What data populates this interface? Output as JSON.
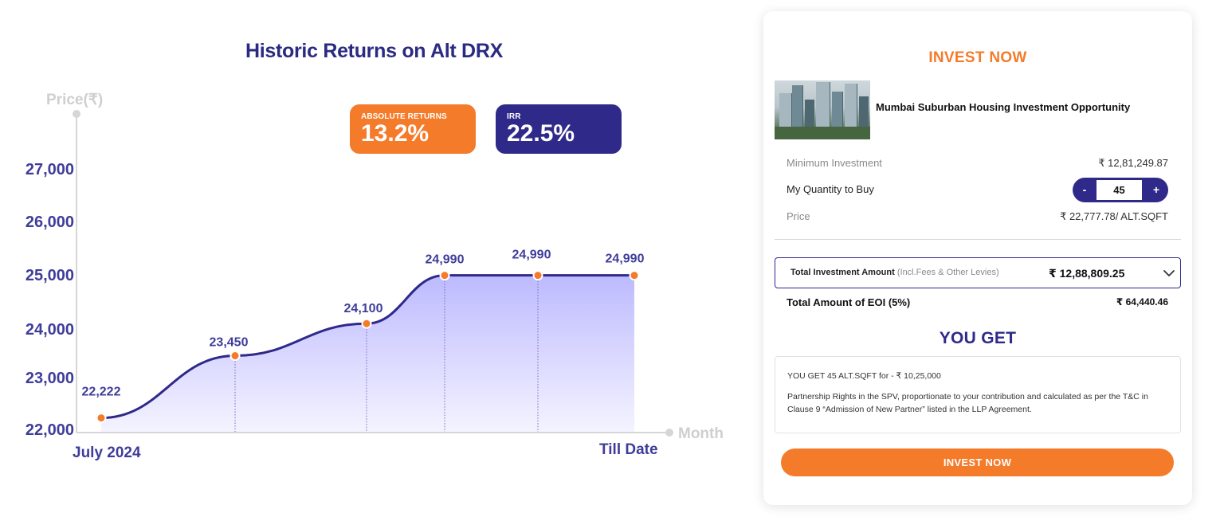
{
  "colors": {
    "brand_orange": "#f47b2a",
    "brand_indigo": "#2f2a8a",
    "axis_text": "#3f3d9a",
    "area_fill_top": "#b9b6ff",
    "area_fill_bottom": "#f1f0ff"
  },
  "chart_title": "Historic Returns on Alt DRX",
  "badges": {
    "absolute": {
      "label": "ABSOLUTE RETURNS",
      "value": "13.2%"
    },
    "irr": {
      "label": "IRR",
      "value": "22.5%"
    }
  },
  "chart_data": {
    "type": "area",
    "title": "Historic Returns on Alt DRX",
    "ylabel": "Price(₹)",
    "xlabel": "Month",
    "x_start_label": "July 2024",
    "x_end_label": "Till Date",
    "yticks": [
      22000,
      23000,
      24000,
      25000,
      26000,
      27000
    ],
    "ytick_labels": [
      "22,000",
      "23,000",
      "24,000",
      "25,000",
      "26,000",
      "27,000"
    ],
    "points": [
      {
        "label": "22,222",
        "value": 22222
      },
      {
        "label": "23,450",
        "value": 23450
      },
      {
        "label": "24,100",
        "value": 24100
      },
      {
        "label": "24,990",
        "value": 24990
      },
      {
        "label": "24,990",
        "value": 24990
      },
      {
        "label": "24,990",
        "value": 24990
      }
    ],
    "grid": false,
    "legend": "none"
  },
  "invest_card": {
    "title": "INVEST NOW",
    "property_name": "Mumbai Suburban Housing Investment Opportunity",
    "min_investment_label": "Minimum Investment",
    "min_investment_value": "₹ 12,81,249.87",
    "quantity_label": "My Quantity to Buy",
    "quantity_value": "45",
    "minus_label": "-",
    "plus_label": "+",
    "price_label": "Price",
    "price_value": "₹ 22,777.78/ ALT.SQFT",
    "total_label": "Total Investment Amount",
    "total_note": "(Incl.Fees & Other Levies)",
    "total_value": "₹ 12,88,809.25",
    "eoi_label": "Total Amount of EOI (5%)",
    "eoi_value": "₹ 64,440.46",
    "you_get_title": "YOU GET",
    "you_get_line1": "YOU GET 45 ALT.SQFT for - ₹ 10,25,000",
    "you_get_line2": "Partnership Rights in the SPV, proportionate to your contribution and calculated as per the T&C in Clause 9 “Admission of New Partner” listed in the LLP Agreement.",
    "button_label": "INVEST NOW"
  }
}
